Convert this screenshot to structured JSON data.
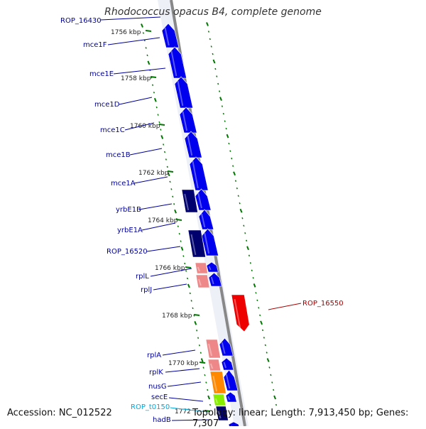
{
  "title": "Rhodococcus opacus B4, complete genome",
  "footer": {
    "accession": "Accession: NC_012522",
    "topology": "Topology: linear; Length: 7,913,450 bp; Genes: 7,307"
  },
  "colors": {
    "cds": "#0000ee",
    "cds_dark": "#00006e",
    "rna": "#ee8888",
    "nusG": "#ff8800",
    "secE": "#88ee00",
    "red_gene": "#ee0000",
    "tick": "#007700",
    "backbone": "#888888",
    "label_blue": "#000099",
    "label_red": "#aa0000",
    "label_cyan": "#00aadd"
  },
  "kbp_ticks": [
    "1756 kbp",
    "1758 kbp",
    "1760 kbp",
    "1762 kbp",
    "1764 kbp",
    "1766 kbp",
    "1768 kbp",
    "1770 kbp",
    "1772"
  ],
  "gene_labels": [
    {
      "text": "ROP_16430",
      "color": "label_blue"
    },
    {
      "text": "mce1F",
      "color": "label_blue"
    },
    {
      "text": "mce1E",
      "color": "label_blue"
    },
    {
      "text": "mce1D",
      "color": "label_blue"
    },
    {
      "text": "mce1C",
      "color": "label_blue"
    },
    {
      "text": "mce1B",
      "color": "label_blue"
    },
    {
      "text": "mce1A",
      "color": "label_blue"
    },
    {
      "text": "yrbE1B",
      "color": "label_blue"
    },
    {
      "text": "yrbE1A",
      "color": "label_blue"
    },
    {
      "text": "ROP_16520",
      "color": "label_blue"
    },
    {
      "text": "rplL",
      "color": "label_blue"
    },
    {
      "text": "rplJ",
      "color": "label_blue"
    },
    {
      "text": "rplA",
      "color": "label_blue"
    },
    {
      "text": "rplK",
      "color": "label_blue"
    },
    {
      "text": "nusG",
      "color": "label_blue"
    },
    {
      "text": "secE",
      "color": "label_blue"
    },
    {
      "text": "ROP_t0150",
      "color": "label_cyan"
    },
    {
      "text": "hadB",
      "color": "label_blue"
    },
    {
      "text": "ROP_16550",
      "color": "label_red"
    }
  ]
}
